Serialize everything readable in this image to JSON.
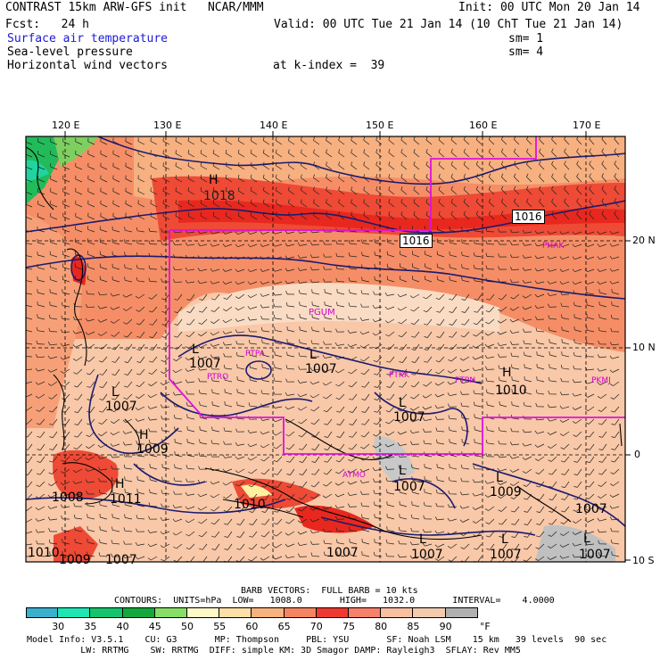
{
  "header": {
    "line1_left": "CONTRAST 15km ARW-GFS init   NCAR/MMM",
    "line1_right": "Init: 00 UTC Mon 20 Jan 14",
    "line2_left": "Fcst:   24 h",
    "line2_right": "Valid: 00 UTC Tue 21 Jan 14 (10 ChT Tue 21 Jan 14)",
    "field1": "Surface air temperature",
    "field1_sm": "sm= 1",
    "field2": "Sea-level pressure",
    "field2_sm": "sm= 4",
    "field3": "Horizontal wind vectors",
    "kindex": "at k-index =  39"
  },
  "axes": {
    "lon_labels": [
      "120 E",
      "130 E",
      "140 E",
      "150 E",
      "160 E",
      "170 E"
    ],
    "lat_labels": [
      "20 N",
      "10 N",
      "0",
      "10 S"
    ]
  },
  "stations": [
    "PHAK",
    "PGUM",
    "PTPA",
    "PTRO",
    "PTKK",
    "PTPN",
    "PKMJ",
    "AYMO"
  ],
  "pressure_labels": [
    "1016",
    "1018",
    "1016",
    "1007",
    "1007",
    "1007",
    "1010",
    "1007",
    "1009",
    "1008",
    "1011",
    "1007",
    "1009",
    "1007",
    "1010",
    "1007",
    "1007",
    "1007",
    "1007",
    "1007",
    "1010",
    "1009"
  ],
  "pressure_centers": [
    "H",
    "L",
    "L",
    "H",
    "L",
    "L",
    "H",
    "H",
    "L",
    "L",
    "L",
    "L",
    "L"
  ],
  "legend": {
    "barb": "BARB VECTORS:  FULL BARB = 10 kts",
    "contours": "CONTOURS:  UNITS=hPa  LOW=   1008.0       HIGH=   1032.0       INTERVAL=    4.0000",
    "ticks": [
      "30",
      "35",
      "40",
      "45",
      "50",
      "55",
      "60",
      "65",
      "70",
      "75",
      "80",
      "85",
      "90",
      "°F"
    ],
    "colors": [
      "#3ab0cc",
      "#1de6b4",
      "#15c46c",
      "#12a83c",
      "#88dd66",
      "#fff9c8",
      "#fde0a8",
      "#f7b27e",
      "#f58560",
      "#ee3a30",
      "#f6806a",
      "#f8c0a0",
      "#f2cab0",
      "#b0b0b0"
    ]
  },
  "footer": {
    "line1": "Model Info: V3.5.1    CU: G3       MP: Thompson     PBL: YSU       SF: Noah LSM    15 km   39 levels  90 sec",
    "line2": "          LW: RRTMG    SW: RRTMG  DIFF: simple KM: 3D Smagor DAMP: Rayleigh3  SFLAY: Rev MM5"
  }
}
